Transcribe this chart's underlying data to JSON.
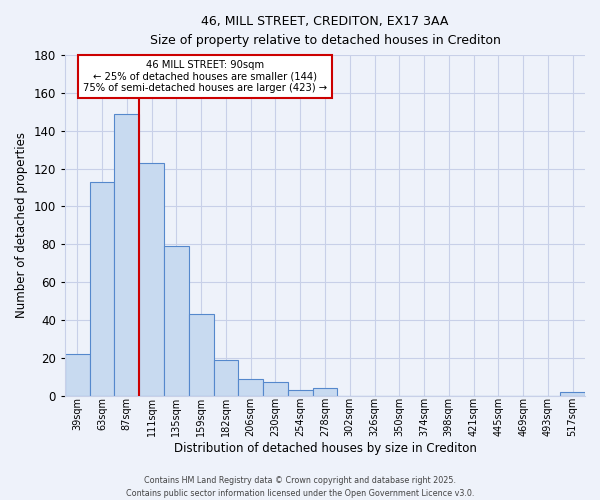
{
  "title": "46, MILL STREET, CREDITON, EX17 3AA",
  "subtitle": "Size of property relative to detached houses in Crediton",
  "xlabel": "Distribution of detached houses by size in Crediton",
  "ylabel": "Number of detached properties",
  "bin_labels": [
    "39sqm",
    "63sqm",
    "87sqm",
    "111sqm",
    "135sqm",
    "159sqm",
    "182sqm",
    "206sqm",
    "230sqm",
    "254sqm",
    "278sqm",
    "302sqm",
    "326sqm",
    "350sqm",
    "374sqm",
    "398sqm",
    "421sqm",
    "445sqm",
    "469sqm",
    "493sqm",
    "517sqm"
  ],
  "bar_values": [
    22,
    113,
    149,
    123,
    79,
    43,
    19,
    9,
    7,
    3,
    4,
    0,
    0,
    0,
    0,
    0,
    0,
    0,
    0,
    0,
    2
  ],
  "bar_color": "#c8daf0",
  "bar_edge_color": "#5588cc",
  "background_color": "#eef2fa",
  "grid_color": "#c8d0e8",
  "ylim": [
    0,
    180
  ],
  "yticks": [
    0,
    20,
    40,
    60,
    80,
    100,
    120,
    140,
    160,
    180
  ],
  "vline_color": "#cc0000",
  "annotation_text": "46 MILL STREET: 90sqm\n← 25% of detached houses are smaller (144)\n75% of semi-detached houses are larger (423) →",
  "annotation_box_color": "#ffffff",
  "annotation_box_edge": "#cc0000",
  "footer1": "Contains HM Land Registry data © Crown copyright and database right 2025.",
  "footer2": "Contains public sector information licensed under the Open Government Licence v3.0."
}
